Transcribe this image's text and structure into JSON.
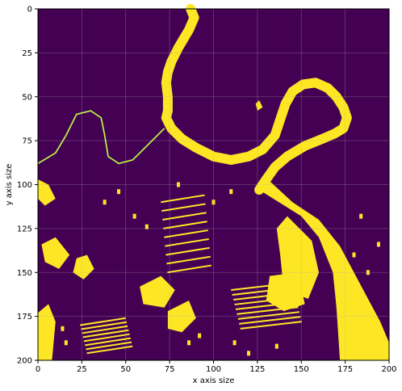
{
  "chart_data": {
    "type": "heatmap",
    "title": "",
    "xlabel": "x axis size",
    "ylabel": "y axis size",
    "xlim": [
      0,
      200
    ],
    "ylim": [
      200,
      0
    ],
    "x_ticks": [
      0,
      25,
      50,
      75,
      100,
      125,
      150,
      175,
      200
    ],
    "y_ticks": [
      0,
      25,
      50,
      75,
      100,
      125,
      150,
      175,
      200
    ],
    "grid": true,
    "colormap": "viridis",
    "values_domain": [
      0,
      1
    ],
    "colors": {
      "low": "#440154",
      "high": "#fde725",
      "edge": "#35b779"
    },
    "description_regions": {
      "river": [
        [
          87,
          0
        ],
        [
          89,
          5
        ],
        [
          86,
          12
        ],
        [
          80,
          22
        ],
        [
          76,
          30
        ],
        [
          74,
          36
        ],
        [
          73,
          42
        ],
        [
          74,
          50
        ],
        [
          74,
          58
        ],
        [
          73,
          62
        ],
        [
          76,
          68
        ],
        [
          82,
          74
        ],
        [
          90,
          79
        ],
        [
          100,
          84
        ],
        [
          110,
          86
        ],
        [
          120,
          84
        ],
        [
          128,
          80
        ],
        [
          135,
          72
        ],
        [
          138,
          63
        ],
        [
          141,
          54
        ],
        [
          145,
          47
        ],
        [
          151,
          43
        ],
        [
          158,
          42
        ],
        [
          165,
          45
        ],
        [
          170,
          50
        ],
        [
          174,
          56
        ],
        [
          176,
          62
        ],
        [
          174,
          68
        ],
        [
          169,
          71
        ],
        [
          162,
          74
        ],
        [
          152,
          78
        ],
        [
          142,
          84
        ],
        [
          135,
          90
        ],
        [
          130,
          97
        ],
        [
          126,
          103
        ]
      ]
    }
  }
}
